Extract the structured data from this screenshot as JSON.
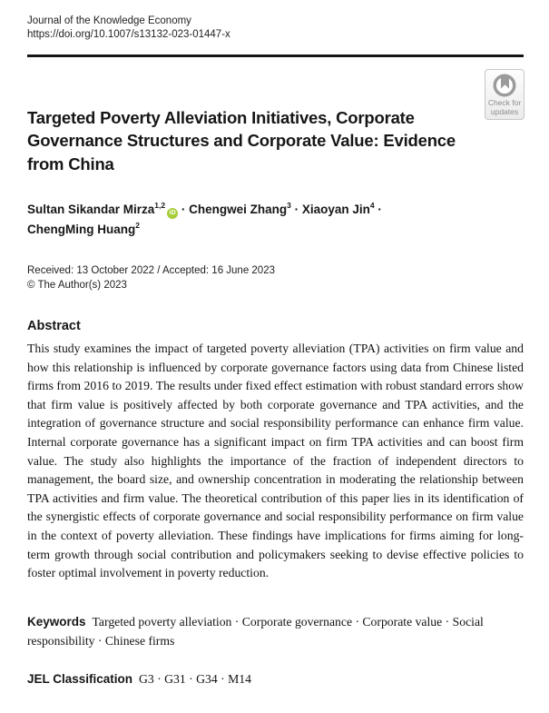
{
  "page": {
    "background": "#ffffff",
    "text_color": "#1a1a1a"
  },
  "header": {
    "journal_name": "Journal of the Knowledge Economy",
    "doi_url": "https://doi.org/10.1007/s13132-023-01447-x"
  },
  "crossmark_badge": {
    "line1": "Check for",
    "line2": "updates",
    "icon": "crossmark-bookmark-circle-icon",
    "icon_color": "#9b9b9b",
    "text_color": "#8d8d8d",
    "border_color": "#c6c6c6"
  },
  "article": {
    "title": "Targeted Poverty Alleviation Initiatives, Corporate Governance Structures and Corporate Value: Evidence from China",
    "authors": [
      {
        "name": "Sultan Sikandar Mirza",
        "affiliations": "1,2",
        "has_orcid": true
      },
      {
        "name": "Chengwei Zhang",
        "affiliations": "3",
        "has_orcid": false
      },
      {
        "name": "Xiaoyan Jin",
        "affiliations": "4",
        "has_orcid": false
      },
      {
        "name": "ChengMing Huang",
        "affiliations": "2",
        "has_orcid": false
      }
    ],
    "author_separator": " · ",
    "orcid_icon": {
      "label": "iD",
      "color": "#a6ce39"
    },
    "received_accepted": "Received: 13 October 2022 / Accepted: 16 June 2023",
    "copyright": "© The Author(s) 2023"
  },
  "abstract": {
    "heading": "Abstract",
    "text": "This study examines the impact of targeted poverty alleviation (TPA) activities on firm value and how this relationship is influenced by corporate governance factors using data from Chinese listed firms from 2016 to 2019. The results under fixed effect estimation with robust standard errors show that firm value is positively affected by both corporate governance and TPA activities, and the integration of governance structure and social responsibility performance can enhance firm value. Internal corporate governance has a significant impact on firm TPA activities and can boost firm value. The study also highlights the importance of the fraction of independent directors to management, the board size, and ownership concentration in moderating the relationship between TPA activities and firm value. The theoretical contribution of this paper lies in its identification of the synergistic effects of corporate governance and social responsibility performance on firm value in the context of poverty alleviation. These findings have implications for firms aiming for long-term growth through social contribution and policymakers seeking to devise effective policies to foster optimal involvement in poverty reduction."
  },
  "keywords": {
    "label": "Keywords",
    "text": "Targeted poverty alleviation · Corporate governance · Corporate value · Social responsibility · Chinese firms"
  },
  "jel": {
    "label": "JEL Classification",
    "text": "G3 · G31 · G34 · M14"
  }
}
